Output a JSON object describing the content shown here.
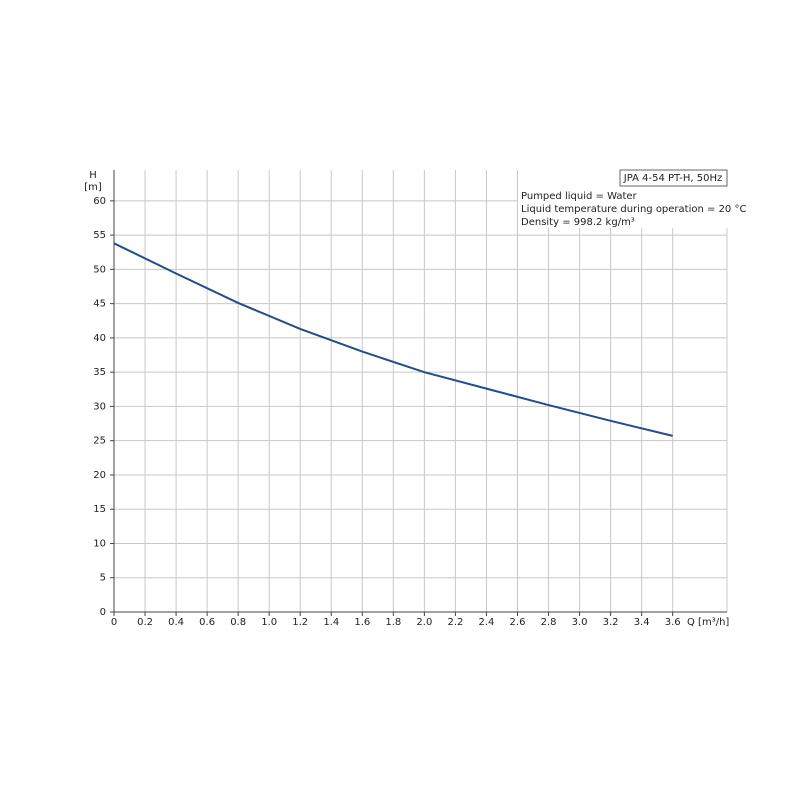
{
  "chart_data": {
    "type": "line",
    "title": "JPA 4-54 PT-H, 50Hz",
    "info": [
      "Pumped liquid = Water",
      "Liquid temperature during operation = 20 °C",
      "Density = 998.2 kg/m³"
    ],
    "y_label": "H",
    "y_unit": "[m]",
    "x_label": "Q [m³/h]",
    "x": [
      0,
      0.4,
      0.8,
      1.2,
      1.6,
      2.0,
      2.4,
      2.8,
      3.2,
      3.6
    ],
    "series": [
      {
        "name": "JPA 4-54 PT-H",
        "color": "#1f4e8c",
        "values": [
          53.8,
          49.4,
          45.1,
          41.3,
          38.0,
          35.0,
          32.6,
          30.2,
          27.9,
          25.7
        ]
      }
    ],
    "xlim": [
      0,
      3.95
    ],
    "ylim": [
      0,
      64.5
    ],
    "xticks": [
      0,
      0.2,
      0.4,
      0.6,
      0.8,
      {
        "value": 1.0,
        "label": "1.0"
      },
      1.2,
      1.4,
      1.6,
      1.8,
      {
        "value": 2.0,
        "label": "2.0"
      },
      2.2,
      2.4,
      2.6,
      2.8,
      {
        "value": 3.0,
        "label": "3.0"
      },
      3.2,
      3.4,
      3.6
    ],
    "yticks": [
      0,
      5,
      10,
      15,
      20,
      25,
      30,
      35,
      40,
      45,
      50,
      55,
      60
    ],
    "grid": true
  }
}
